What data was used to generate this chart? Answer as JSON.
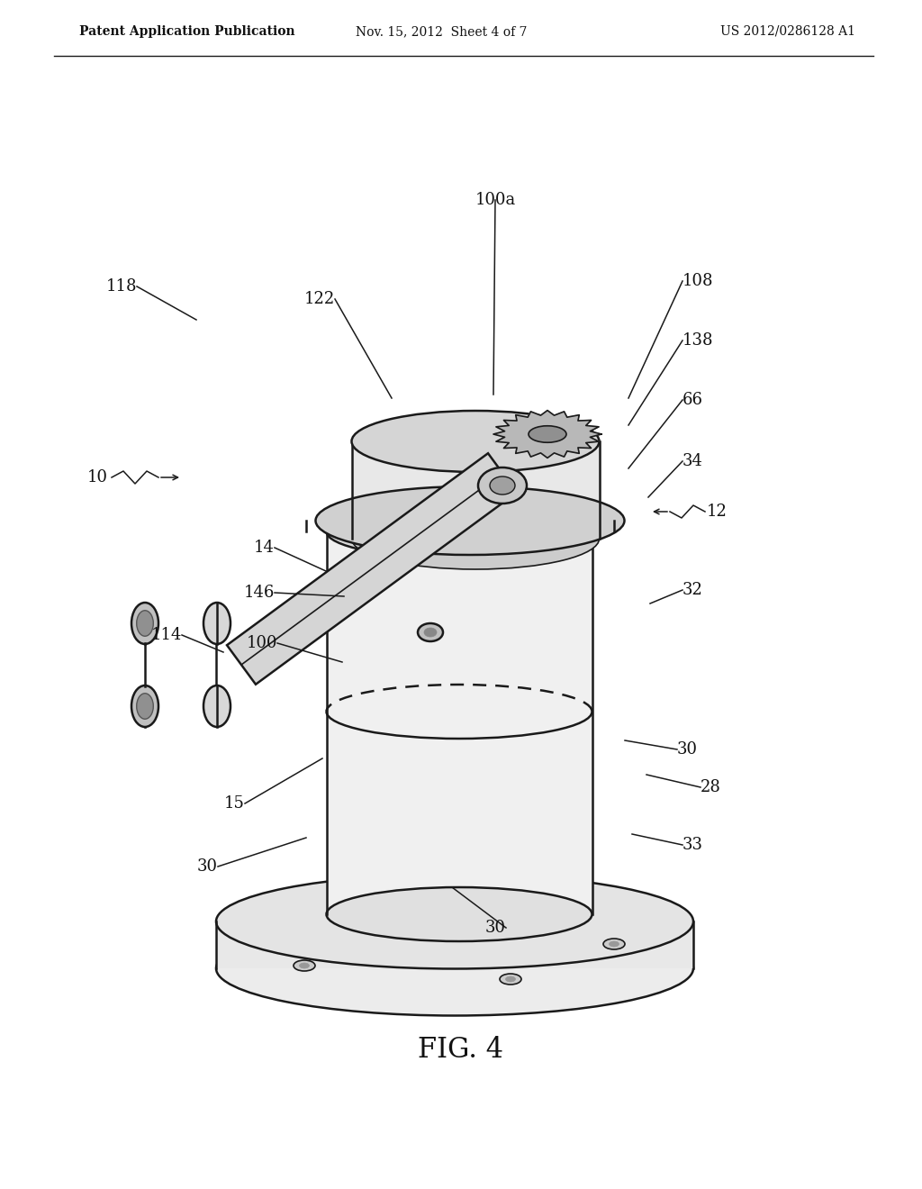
{
  "bg_color": "#ffffff",
  "line_color": "#1a1a1a",
  "title": "FIG. 4",
  "header_left": "Patent Application Publication",
  "header_mid": "Nov. 15, 2012  Sheet 4 of 7",
  "header_right": "US 2012/0286128 A1"
}
